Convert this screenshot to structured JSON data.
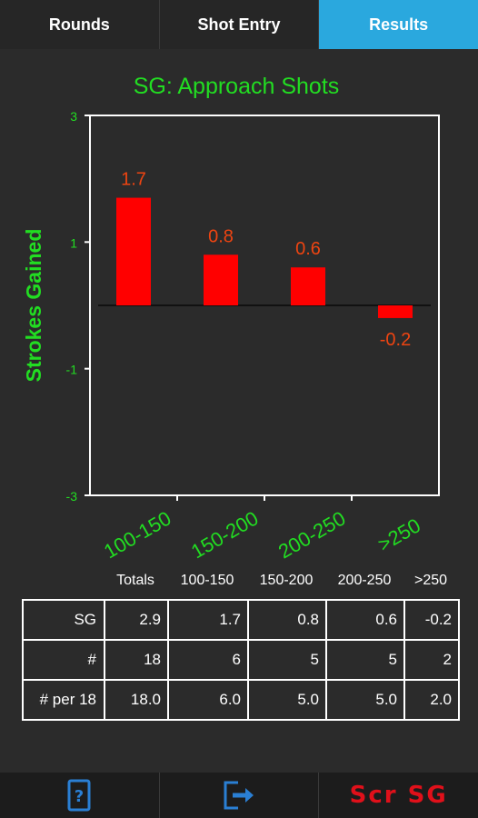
{
  "tabs": [
    {
      "label": "Rounds",
      "active": false
    },
    {
      "label": "Shot Entry",
      "active": false
    },
    {
      "label": "Results",
      "active": true
    }
  ],
  "chart_data": {
    "type": "bar",
    "title": "SG: Approach Shots",
    "ylabel": "Strokes Gained",
    "xlabel": "",
    "categories": [
      "100-150",
      "150-200",
      "200-250",
      ">250"
    ],
    "values": [
      1.7,
      0.8,
      0.6,
      -0.2
    ],
    "data_labels": [
      "1.7",
      "0.8",
      "0.6",
      "-0.2"
    ],
    "ylim": [
      -3,
      3
    ],
    "yticks": [
      "3",
      "1",
      "-1",
      "-3"
    ],
    "grid": false,
    "colors": {
      "bar": "#ff0000",
      "title": "#22dd22",
      "labels": "#ee4411",
      "axis": "#ffffff",
      "ticks": "#22dd22"
    }
  },
  "stats": {
    "headers": [
      "Totals",
      "100-150",
      "150-200",
      "200-250",
      ">250"
    ],
    "rows": [
      {
        "label": "SG",
        "values": [
          "2.9",
          "1.7",
          "0.8",
          "0.6",
          "-0.2"
        ]
      },
      {
        "label": "#",
        "values": [
          "18",
          "6",
          "5",
          "5",
          "2"
        ]
      },
      {
        "label": "# per 18",
        "values": [
          "18.0",
          "6.0",
          "5.0",
          "5.0",
          "2.0"
        ]
      }
    ]
  },
  "bottom_bar": {
    "help_icon": "phone-question-icon",
    "export_icon": "export-arrow-icon",
    "scr_label": "Scr SG"
  }
}
